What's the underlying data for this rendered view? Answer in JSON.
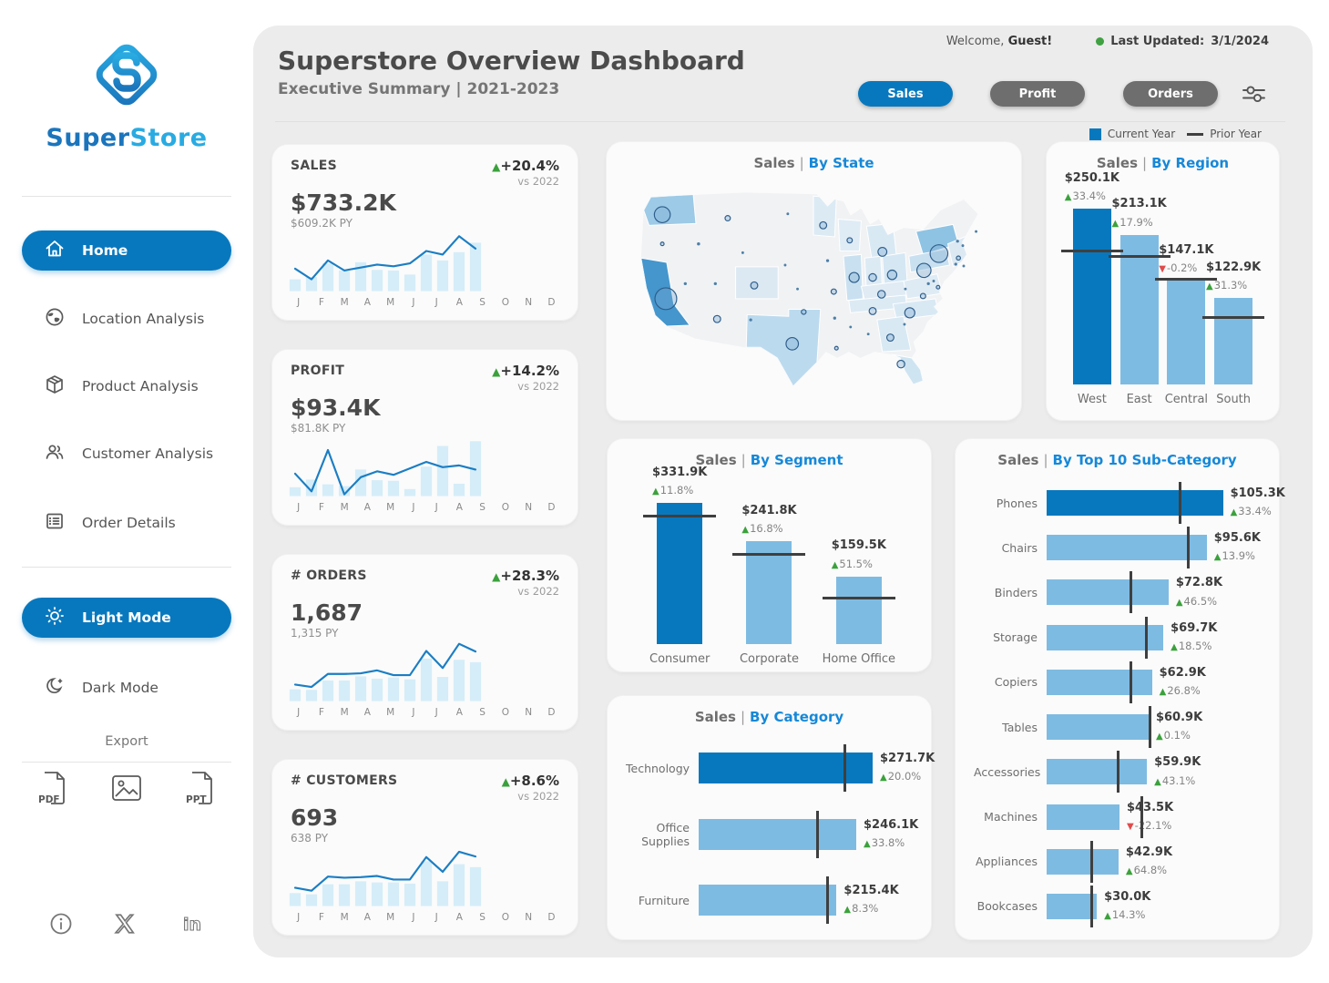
{
  "colors": {
    "accent": "#0878BE",
    "bar_light": "#7EBBE2",
    "bar_pale": "#D5EDF8",
    "line": "#1B7EC4",
    "green": "#3BA13C",
    "red": "#E14B4B",
    "title_link": "#1688D8"
  },
  "sidebar": {
    "brand_primary": "Super",
    "brand_secondary": "Store",
    "nav": [
      {
        "label": "Home",
        "active": true
      },
      {
        "label": "Location Analysis",
        "active": false
      },
      {
        "label": "Product Analysis",
        "active": false
      },
      {
        "label": "Customer Analysis",
        "active": false
      },
      {
        "label": "Order Details",
        "active": false
      }
    ],
    "light_mode_label": "Light Mode",
    "dark_mode_label": "Dark Mode",
    "export_label": "Export",
    "export_pdf_text": "PDF",
    "export_ppt_text": "PPT",
    "linkedin_glyph": "in"
  },
  "header": {
    "title": "Superstore Overview Dashboard",
    "subtitle": "Executive Summary | 2021-2023",
    "welcome_prefix": "Welcome, ",
    "welcome_user": "Guest!",
    "updated_label": "Last Updated:",
    "updated_value": "3/1/2024",
    "buttons": [
      {
        "label": "Sales",
        "active": true
      },
      {
        "label": "Profit",
        "active": false
      },
      {
        "label": "Orders",
        "active": false
      }
    ],
    "legend_current": "Current Year",
    "legend_prior": "Prior Year"
  },
  "kpi_months": [
    "J",
    "F",
    "M",
    "A",
    "M",
    "J",
    "J",
    "A",
    "S",
    "O",
    "N",
    "D"
  ],
  "kpis": [
    {
      "title": "SALES",
      "value": "$733.2K",
      "py": "$609.2K PY",
      "delta": "+20.4%",
      "dir": "up",
      "vs": "vs 2022",
      "bars": [
        0.2,
        0.24,
        0.47,
        0.35,
        0.49,
        0.36,
        0.35,
        0.28,
        0.62,
        0.52,
        0.66,
        0.82
      ],
      "line": [
        0.38,
        0.2,
        0.52,
        0.35,
        0.4,
        0.45,
        0.42,
        0.47,
        0.68,
        0.62,
        0.93,
        0.72
      ]
    },
    {
      "title": "PROFIT",
      "value": "$93.4K",
      "py": "$81.8K PY",
      "delta": "+14.2%",
      "dir": "up",
      "vs": "vs 2022",
      "bars": [
        0.15,
        0.28,
        0.2,
        0.17,
        0.45,
        0.27,
        0.26,
        0.12,
        0.5,
        0.85,
        0.21,
        0.93
      ],
      "line": [
        0.38,
        0.08,
        0.78,
        0.03,
        0.32,
        0.42,
        0.36,
        0.47,
        0.58,
        0.49,
        0.52,
        0.45
      ]
    },
    {
      "title": "# ORDERS",
      "value": "1,687",
      "py": "1,315 PY",
      "delta": "+28.3%",
      "dir": "up",
      "vs": "vs 2022",
      "bars": [
        0.2,
        0.19,
        0.35,
        0.35,
        0.42,
        0.38,
        0.4,
        0.37,
        0.72,
        0.41,
        0.7,
        0.66
      ],
      "line": [
        0.28,
        0.24,
        0.46,
        0.46,
        0.47,
        0.52,
        0.44,
        0.44,
        0.85,
        0.56,
        0.97,
        0.84
      ]
    },
    {
      "title": "# CUSTOMERS",
      "value": "693",
      "py": "638 PY",
      "delta": "+8.6%",
      "dir": "up",
      "vs": "vs 2022",
      "bars": [
        0.22,
        0.2,
        0.37,
        0.37,
        0.42,
        0.4,
        0.4,
        0.38,
        0.76,
        0.42,
        0.71,
        0.66
      ],
      "line": [
        0.31,
        0.26,
        0.5,
        0.48,
        0.49,
        0.51,
        0.45,
        0.45,
        0.83,
        0.58,
        0.92,
        0.84
      ]
    }
  ],
  "chart_data": [
    {
      "id": "sales_by_state",
      "type": "map-bubble",
      "title_prefix": "Sales",
      "title_sep": "|",
      "title_suffix": "By State",
      "bubbles": [
        [
          57,
          45,
          9
        ],
        [
          131,
          49,
          3
        ],
        [
          199,
          44,
          1.5
        ],
        [
          239,
          57,
          4
        ],
        [
          57,
          78,
          2
        ],
        [
          98,
          78,
          1.8
        ],
        [
          269,
          74,
          3
        ],
        [
          306,
          87,
          5
        ],
        [
          370,
          89,
          10
        ],
        [
          196,
          102,
          1.5
        ],
        [
          148,
          88,
          1.5
        ],
        [
          244,
          97,
          1.7
        ],
        [
          353,
          108,
          8
        ],
        [
          274,
          116,
          5.7
        ],
        [
          295,
          116,
          4.3
        ],
        [
          317,
          113,
          5.3
        ],
        [
          83,
          123,
          1.7
        ],
        [
          117,
          123,
          1.7
        ],
        [
          161,
          125,
          4
        ],
        [
          210,
          129,
          1.5
        ],
        [
          251,
          132,
          3
        ],
        [
          305,
          135,
          4.3
        ],
        [
          332,
          129,
          1.5
        ],
        [
          352,
          137,
          3
        ],
        [
          61,
          140,
          12.3
        ],
        [
          119,
          163,
          4
        ],
        [
          157,
          164,
          1.7
        ],
        [
          217,
          155,
          2.7
        ],
        [
          252,
          162,
          1.7
        ],
        [
          295,
          154,
          4
        ],
        [
          337,
          156,
          5.7
        ],
        [
          331,
          169,
          1.5
        ],
        [
          270,
          172,
          1.5
        ],
        [
          290,
          180,
          1.5
        ],
        [
          315,
          184,
          4
        ],
        [
          204,
          191,
          7
        ],
        [
          254,
          196,
          2
        ],
        [
          327,
          214,
          4.3
        ],
        [
          412,
          64,
          1.5
        ],
        [
          391,
          75,
          1.7
        ],
        [
          397,
          80,
          1.5
        ],
        [
          392,
          94,
          2.3
        ],
        [
          389,
          101,
          1.7
        ],
        [
          398,
          103,
          1.5
        ],
        [
          358,
          123,
          1.7
        ],
        [
          364,
          120,
          1.5
        ],
        [
          369,
          127,
          2
        ]
      ]
    },
    {
      "id": "sales_by_region",
      "type": "bar",
      "title_prefix": "Sales",
      "title_sep": "|",
      "title_suffix": "By Region",
      "categories": [
        "West",
        "East",
        "Central",
        "South"
      ],
      "values": [
        250.1,
        213.1,
        147.1,
        122.9
      ],
      "prior": [
        187.5,
        180.7,
        147.4,
        93.6
      ],
      "value_labels": [
        "$250.1K",
        "$213.1K",
        "$147.1K",
        "$122.9K"
      ],
      "delta_labels": [
        "33.4%",
        "17.9%",
        "-0.2%",
        "31.3%"
      ],
      "delta_dirs": [
        "up",
        "up",
        "down",
        "up"
      ],
      "max": 250.1,
      "highlight": 0
    },
    {
      "id": "sales_by_segment",
      "type": "bar",
      "title_prefix": "Sales",
      "title_sep": "|",
      "title_suffix": "By Segment",
      "categories": [
        "Consumer",
        "Corporate",
        "Home Office"
      ],
      "values": [
        331.9,
        241.8,
        159.5
      ],
      "prior": [
        296.9,
        207.0,
        105.3
      ],
      "value_labels": [
        "$331.9K",
        "$241.8K",
        "$159.5K"
      ],
      "delta_labels": [
        "11.8%",
        "16.8%",
        "51.5%"
      ],
      "delta_dirs": [
        "up",
        "up",
        "up"
      ],
      "max": 331.9,
      "highlight": 0
    },
    {
      "id": "sales_by_category",
      "type": "hbar",
      "title_prefix": "Sales",
      "title_sep": "|",
      "title_suffix": "By Category",
      "categories": [
        "Technology",
        "Office Supplies",
        "Furniture"
      ],
      "values": [
        271.7,
        246.1,
        215.4
      ],
      "prior": [
        226.4,
        183.9,
        198.9
      ],
      "value_labels": [
        "$271.7K",
        "$246.1K",
        "$215.4K"
      ],
      "delta_labels": [
        "20.0%",
        "33.8%",
        "8.3%"
      ],
      "delta_dirs": [
        "up",
        "up",
        "up"
      ],
      "max": 340,
      "highlight": 0
    },
    {
      "id": "sales_by_subcategory",
      "type": "hbar",
      "title_prefix": "Sales",
      "title_sep": "|",
      "title_suffix": "By Top 10 Sub-Category",
      "categories": [
        "Phones",
        "Chairs",
        "Binders",
        "Storage",
        "Copiers",
        "Tables",
        "Accessories",
        "Machines",
        "Appliances",
        "Bookcases"
      ],
      "values": [
        105.3,
        95.6,
        72.8,
        69.7,
        62.9,
        60.9,
        59.9,
        43.5,
        42.9,
        30.0
      ],
      "prior": [
        78.9,
        83.9,
        49.7,
        58.8,
        49.6,
        60.8,
        41.9,
        55.8,
        26.0,
        26.2
      ],
      "value_labels": [
        "$105.3K",
        "$95.6K",
        "$72.8K",
        "$69.7K",
        "$62.9K",
        "$60.9K",
        "$59.9K",
        "$43.5K",
        "$42.9K",
        "$30.0K"
      ],
      "delta_labels": [
        "33.4%",
        "13.9%",
        "46.5%",
        "18.5%",
        "26.8%",
        "0.1%",
        "43.1%",
        "-22.1%",
        "64.8%",
        "14.3%"
      ],
      "delta_dirs": [
        "up",
        "up",
        "up",
        "up",
        "up",
        "up",
        "up",
        "down",
        "up",
        "up"
      ],
      "max": 130,
      "highlight": 0
    }
  ]
}
